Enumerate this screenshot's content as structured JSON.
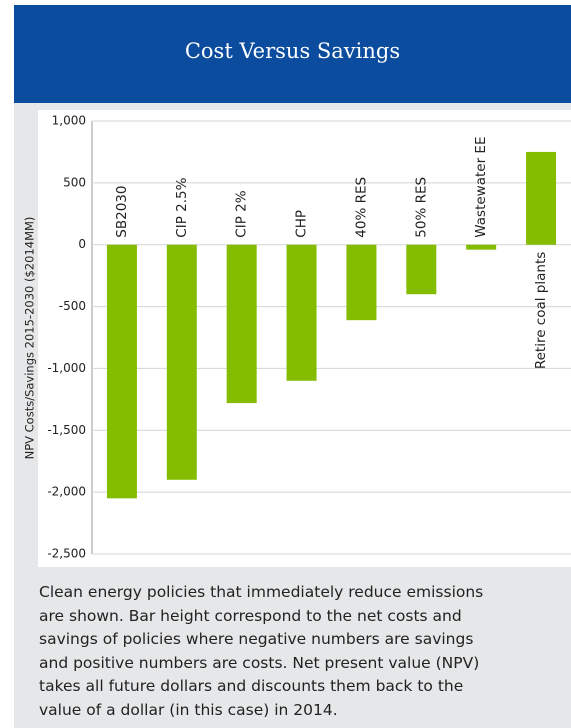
{
  "chart_data": {
    "type": "bar",
    "title": "Cost Versus Savings",
    "ylabel": "NPV Costs/Savings 2015-2030 ($2014MM)",
    "categories": [
      "SB2030",
      "CIP 2.5%",
      "CIP 2%",
      "CHP",
      "40% RES",
      "50% RES",
      "Wastewater EE",
      "Retire coal plants"
    ],
    "values": [
      -2050,
      -1900,
      -1280,
      -1100,
      -610,
      -400,
      -40,
      750
    ],
    "color": "#84bd00",
    "ylim": [
      -2500,
      1000
    ],
    "yticks": [
      {
        "value": -2500,
        "label": "-2,500"
      },
      {
        "value": -2000,
        "label": "-2,000"
      },
      {
        "value": -1500,
        "label": "-1,500"
      },
      {
        "value": -1000,
        "label": "-1,000"
      },
      -500,
      0,
      500,
      {
        "value": 1000,
        "label": "1,000"
      }
    ],
    "grid": true,
    "caption": [
      "Clean energy policies that immediately reduce emissions",
      "are shown. Bar height correspond to the net costs and",
      "savings of policies where negative numbers are savings",
      "and positive numbers are costs. Net present value (NPV)",
      "takes all future dollars and discounts them back to the",
      "value of a dollar (in this case) in 2014."
    ]
  }
}
